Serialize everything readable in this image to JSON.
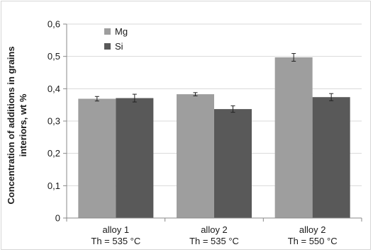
{
  "chart_data": {
    "type": "bar",
    "title": "",
    "xlabel": "",
    "ylabel": "Concentration of additions  in  grains interiors, wt %",
    "ylabel_lines": [
      "Concentration of additions  in  grains",
      "interiors, wt %"
    ],
    "categories": [
      [
        "alloy 1",
        "Th = 535 °C"
      ],
      [
        "alloy 2",
        "Th = 535 °C"
      ],
      [
        "alloy 2",
        "Th =  550 °C"
      ]
    ],
    "series": [
      {
        "name": "Mg",
        "color": "#9e9e9e",
        "values": [
          0.369,
          0.383,
          0.497
        ],
        "errors": [
          0.007,
          0.005,
          0.012
        ]
      },
      {
        "name": "Si",
        "color": "#595959",
        "values": [
          0.371,
          0.337,
          0.374
        ],
        "errors": [
          0.012,
          0.01,
          0.011
        ]
      }
    ],
    "ylim": [
      0,
      0.6
    ],
    "yticks": [
      "0",
      "0,1",
      "0,2",
      "0,3",
      "0,4",
      "0,5",
      "0,6"
    ],
    "ytick_values": [
      0,
      0.1,
      0.2,
      0.3,
      0.4,
      0.5,
      0.6
    ],
    "grid": true,
    "legend": "top-left",
    "error_bars": true
  }
}
